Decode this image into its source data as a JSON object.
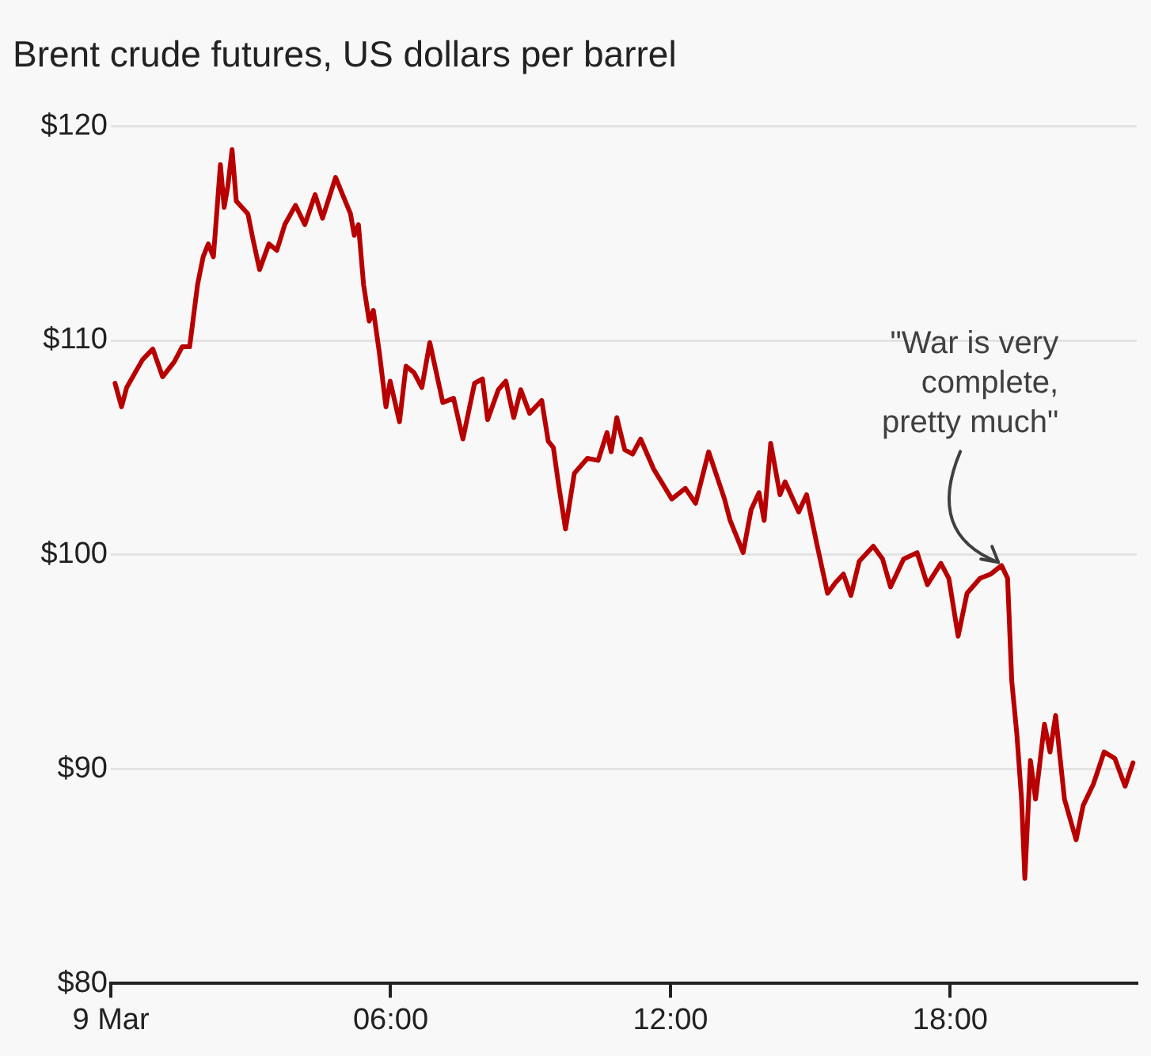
{
  "chart_data": {
    "type": "line",
    "title": "Brent crude futures, US dollars per barrel",
    "x": [
      0.09,
      0.23,
      0.34,
      0.68,
      0.9,
      1.11,
      1.36,
      1.53,
      1.69,
      1.86,
      1.98,
      2.09,
      2.2,
      2.35,
      2.43,
      2.51,
      2.6,
      2.69,
      2.94,
      3.05,
      3.19,
      3.39,
      3.56,
      3.73,
      3.96,
      4.16,
      4.38,
      4.54,
      4.82,
      5.14,
      5.22,
      5.31,
      5.42,
      5.54,
      5.63,
      5.76,
      5.9,
      5.99,
      6.19,
      6.33,
      6.5,
      6.67,
      6.84,
      7.12,
      7.35,
      7.55,
      7.8,
      7.97,
      8.08,
      8.31,
      8.47,
      8.64,
      8.79,
      8.98,
      9.24,
      9.38,
      9.49,
      9.6,
      9.75,
      9.94,
      10.22,
      10.45,
      10.64,
      10.73,
      10.85,
      11.02,
      11.19,
      11.36,
      11.64,
      12.03,
      12.32,
      12.54,
      12.82,
      13.16,
      13.28,
      13.56,
      13.73,
      13.9,
      14.01,
      14.15,
      14.35,
      14.46,
      14.75,
      14.92,
      15.14,
      15.37,
      15.54,
      15.71,
      15.87,
      16.05,
      16.35,
      16.55,
      16.72,
      17.0,
      17.29,
      17.51,
      17.8,
      17.97,
      18.17,
      18.36,
      18.64,
      18.87,
      19.1,
      19.23,
      19.32,
      19.43,
      19.53,
      19.6,
      19.72,
      19.83,
      20.02,
      20.14,
      20.26,
      20.45,
      20.7,
      20.85,
      21.07,
      21.3,
      21.53,
      21.75,
      21.92
    ],
    "series": [
      {
        "color": "#b80000",
        "values": [
          108.0,
          106.9,
          107.8,
          109.1,
          109.6,
          108.3,
          109.0,
          109.7,
          109.7,
          112.6,
          113.9,
          114.5,
          113.9,
          118.2,
          116.2,
          117.2,
          118.9,
          116.5,
          115.9,
          114.7,
          113.3,
          114.5,
          114.2,
          115.4,
          116.3,
          115.4,
          116.8,
          115.7,
          117.6,
          115.9,
          114.9,
          115.4,
          112.6,
          110.9,
          111.4,
          109.4,
          106.9,
          108.1,
          106.2,
          108.8,
          108.5,
          107.8,
          109.9,
          107.1,
          107.3,
          105.4,
          108.0,
          108.2,
          106.3,
          107.7,
          108.1,
          106.4,
          107.7,
          106.6,
          107.2,
          105.3,
          105.0,
          103.3,
          101.2,
          103.8,
          104.5,
          104.4,
          105.7,
          104.8,
          106.4,
          104.9,
          104.7,
          105.4,
          104.0,
          102.6,
          103.1,
          102.4,
          104.8,
          102.6,
          101.6,
          100.1,
          102.1,
          102.9,
          101.6,
          105.2,
          102.8,
          103.4,
          102.0,
          102.8,
          100.5,
          98.2,
          98.7,
          99.1,
          98.1,
          99.7,
          100.4,
          99.8,
          98.5,
          99.8,
          100.1,
          98.6,
          99.6,
          98.9,
          96.2,
          98.2,
          98.9,
          99.1,
          99.5,
          98.9,
          94.1,
          91.6,
          88.6,
          84.9,
          90.4,
          88.6,
          92.1,
          90.8,
          92.5,
          88.6,
          86.7,
          88.3,
          89.3,
          90.8,
          90.5,
          89.2,
          90.3
        ]
      }
    ],
    "xlim": [
      0,
      22
    ],
    "xticks": [
      {
        "value": 0,
        "label": "9 Mar"
      },
      {
        "value": 6,
        "label": "06:00"
      },
      {
        "value": 12,
        "label": "12:00"
      },
      {
        "value": 18,
        "label": "18:00"
      }
    ],
    "ylim": [
      80,
      120
    ],
    "yticks": [
      {
        "value": 80,
        "label": "$80"
      },
      {
        "value": 90,
        "label": "$90"
      },
      {
        "value": 100,
        "label": "$100"
      },
      {
        "value": 110,
        "label": "$110"
      },
      {
        "value": 120,
        "label": "$120"
      }
    ],
    "grid": "y",
    "legend": false,
    "marker": "none",
    "line_style": "solid",
    "annotations": [
      {
        "text": "\"War is very\ncomplete,\npretty much\"",
        "x": 19.1,
        "y": 99.5
      }
    ]
  }
}
